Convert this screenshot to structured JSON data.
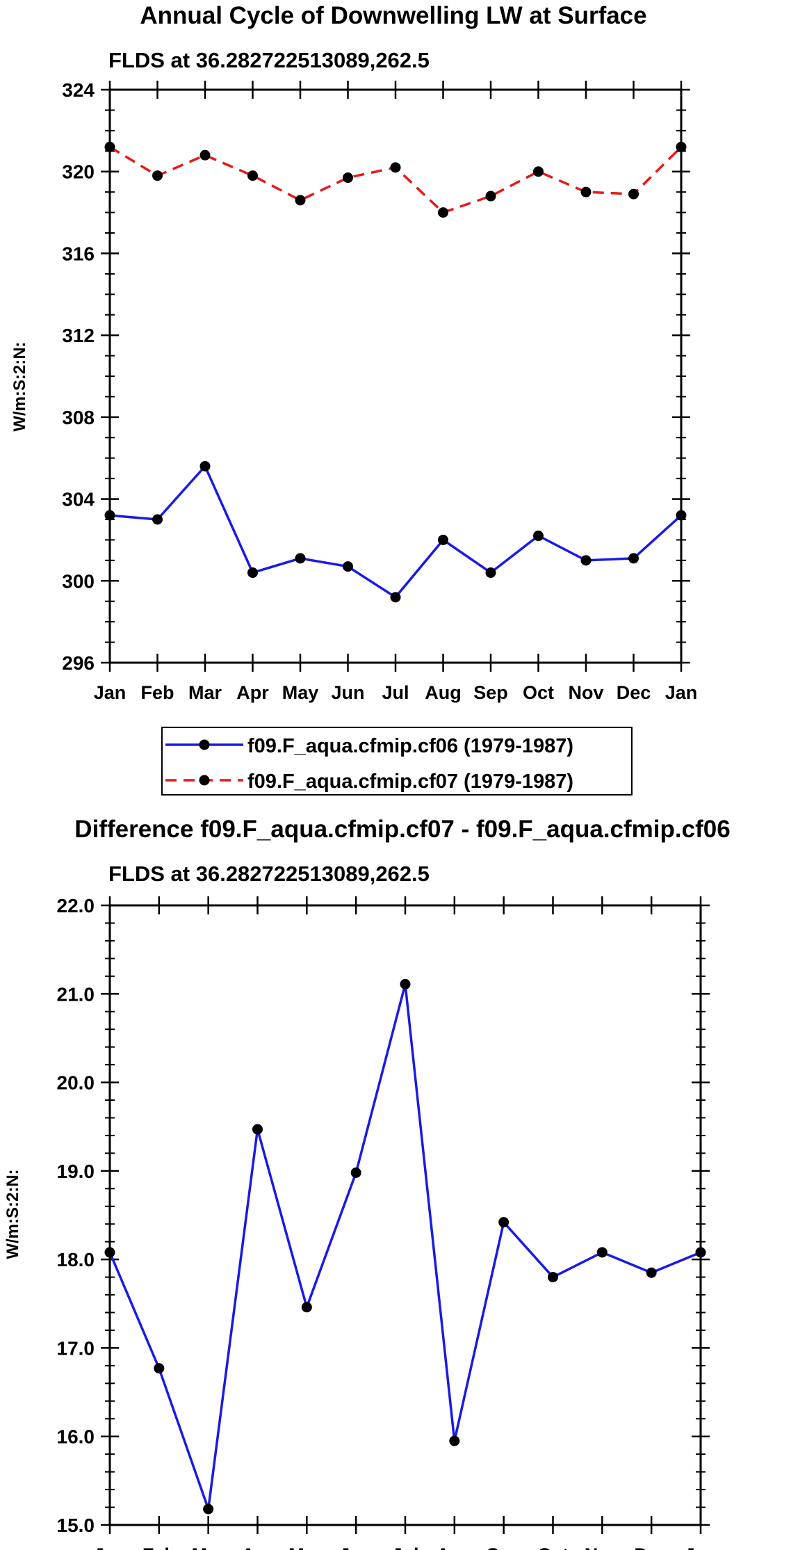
{
  "colors": {
    "series_cf06": "#1a1ae6",
    "series_cf07": "#e61a1a",
    "marker": "#000000",
    "axis": "#000000"
  },
  "chart_data": [
    {
      "type": "line",
      "title": "Annual Cycle of Downwelling LW at Surface",
      "subtitle": "FLDS at 36.282722513089,262.5",
      "xlabel": "",
      "ylabel": "W/m:S:2:N:",
      "categories": [
        "Jan",
        "Feb",
        "Mar",
        "Apr",
        "May",
        "Jun",
        "Jul",
        "Aug",
        "Sep",
        "Oct",
        "Nov",
        "Dec",
        "Jan"
      ],
      "ylim": [
        296,
        324
      ],
      "yticks": [
        296,
        300,
        304,
        308,
        312,
        316,
        320,
        324
      ],
      "ytick_labels": [
        "296",
        "300",
        "304",
        "308",
        "312",
        "316",
        "320",
        "324"
      ],
      "grid": false,
      "legend_position": "bottom-center",
      "series": [
        {
          "name": "f09.F_aqua.cfmip.cf06 (1979-1987)",
          "style": "solid",
          "color": "#1a1ae6",
          "values": [
            303.2,
            303.0,
            305.6,
            300.4,
            301.1,
            300.7,
            299.2,
            302.0,
            300.4,
            302.2,
            301.0,
            301.1,
            303.2
          ]
        },
        {
          "name": "f09.F_aqua.cfmip.cf07 (1979-1987)",
          "style": "dashed",
          "color": "#e61a1a",
          "values": [
            321.2,
            319.8,
            320.8,
            319.8,
            318.6,
            319.7,
            320.2,
            318.0,
            318.8,
            320.0,
            319.0,
            318.9,
            321.2
          ]
        }
      ]
    },
    {
      "type": "line",
      "title": "Difference f09.F_aqua.cfmip.cf07 - f09.F_aqua.cfmip.cf06",
      "subtitle": "FLDS at 36.282722513089,262.5",
      "xlabel": "",
      "ylabel": "W/m:S:2:N:",
      "categories": [
        "Jan",
        "Feb",
        "Mar",
        "Apr",
        "May",
        "Jun",
        "Jul",
        "Aug",
        "Sep",
        "Oct",
        "Nov",
        "Dec",
        "Jan"
      ],
      "ylim": [
        15.0,
        22.0
      ],
      "yticks": [
        15.0,
        16.0,
        17.0,
        18.0,
        19.0,
        20.0,
        21.0,
        22.0
      ],
      "ytick_labels": [
        "15.0",
        "16.0",
        "17.0",
        "18.0",
        "19.0",
        "20.0",
        "21.0",
        "22.0"
      ],
      "grid": false,
      "series": [
        {
          "style": "solid",
          "color": "#1a1ae6",
          "values": [
            18.08,
            16.77,
            15.18,
            19.47,
            17.46,
            18.98,
            21.11,
            15.95,
            18.42,
            17.8,
            18.08,
            17.85,
            18.08
          ]
        }
      ]
    }
  ]
}
